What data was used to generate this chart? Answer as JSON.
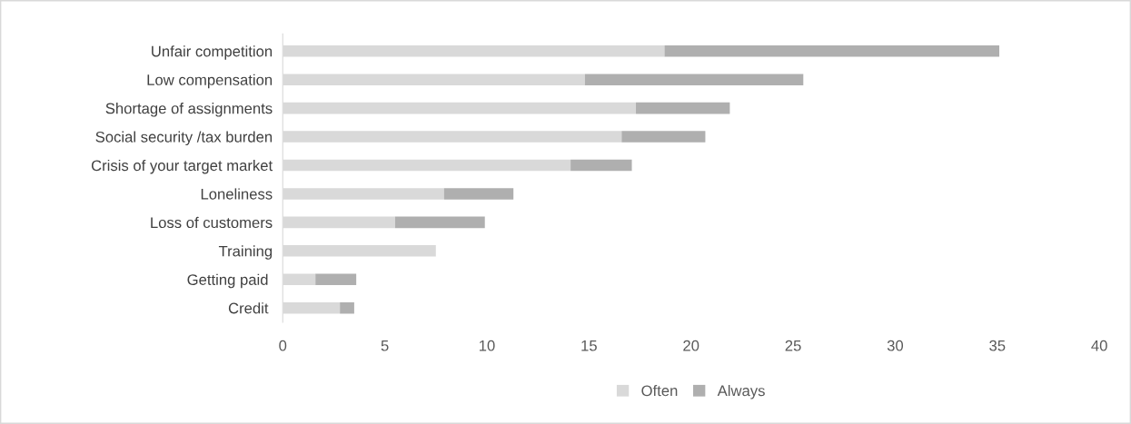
{
  "chart_data": {
    "type": "bar",
    "orientation": "horizontal",
    "stacked": true,
    "categories": [
      "Unfair competition",
      "Low compensation",
      "Shortage of assignments",
      "Social security /tax burden",
      "Crisis of your target market",
      "Loneliness",
      "Loss of customers",
      "Training",
      "Getting paid ",
      "Credit "
    ],
    "series": [
      {
        "name": "Often",
        "color": "#d9d9d9",
        "values": [
          18.7,
          14.8,
          17.3,
          16.6,
          14.1,
          7.9,
          5.5,
          7.5,
          1.6,
          2.8
        ]
      },
      {
        "name": "Always",
        "color": "#afafaf",
        "values": [
          16.4,
          10.7,
          4.6,
          4.1,
          3.0,
          3.4,
          4.4,
          null,
          2.0,
          0.7
        ]
      }
    ],
    "xlim": [
      0,
      40
    ],
    "xticks": [
      0,
      5,
      10,
      15,
      20,
      25,
      30,
      35,
      40
    ],
    "grid": false,
    "legend": "bottom"
  }
}
